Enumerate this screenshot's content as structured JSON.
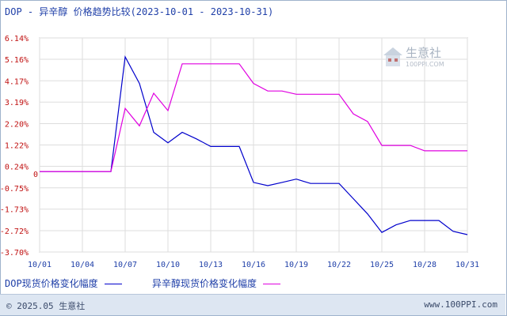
{
  "title": "DOP - 异辛醇 价格趋势比较(2023-10-01 - 2023-10-31)",
  "legend": [
    {
      "label": "DOP现货价格变化幅度",
      "color": "#0000cc"
    },
    {
      "label": "异辛醇现货价格变化幅度",
      "color": "#e000e0"
    }
  ],
  "footer": {
    "copyright": "© 2025.05 生意社",
    "site": "www.100PPI.com"
  },
  "watermark": {
    "name": "生意社",
    "url": "100PPI.COM"
  },
  "chart_data": {
    "type": "line",
    "x_ticks": [
      "10/01",
      "10/04",
      "10/07",
      "10/10",
      "10/13",
      "10/16",
      "10/19",
      "10/22",
      "10/25",
      "10/28",
      "10/31"
    ],
    "y_ticks": [
      "6.14%",
      "5.16%",
      "4.17%",
      "3.19%",
      "2.20%",
      "1.22%",
      "0.24%",
      "-0.75%",
      "-1.73%",
      "-2.72%",
      "-3.70%"
    ],
    "zero_label": "0",
    "ylim": [
      -3.7,
      6.14
    ],
    "xlim": [
      "10/01",
      "10/31"
    ],
    "grid": true,
    "series": [
      {
        "name": "DOP现货价格变化幅度",
        "color": "#0000cc",
        "x": [
          "10/01",
          "10/02",
          "10/03",
          "10/04",
          "10/05",
          "10/06",
          "10/07",
          "10/08",
          "10/09",
          "10/10",
          "10/11",
          "10/12",
          "10/13",
          "10/14",
          "10/15",
          "10/16",
          "10/17",
          "10/18",
          "10/19",
          "10/20",
          "10/21",
          "10/22",
          "10/23",
          "10/24",
          "10/25",
          "10/26",
          "10/27",
          "10/28",
          "10/29",
          "10/30",
          "10/31"
        ],
        "values": [
          0,
          0,
          0,
          0,
          0,
          0,
          5.27,
          4.05,
          1.8,
          1.32,
          1.8,
          1.5,
          1.15,
          1.15,
          1.15,
          -0.5,
          -0.65,
          -0.5,
          -0.35,
          -0.55,
          -0.55,
          -0.55,
          -1.25,
          -1.95,
          -2.8,
          -2.45,
          -2.25,
          -2.25,
          -2.25,
          -2.75,
          -2.9
        ]
      },
      {
        "name": "异辛醇现货价格变化幅度",
        "color": "#e000e0",
        "x": [
          "10/01",
          "10/02",
          "10/03",
          "10/04",
          "10/05",
          "10/06",
          "10/07",
          "10/08",
          "10/09",
          "10/10",
          "10/11",
          "10/12",
          "10/13",
          "10/14",
          "10/15",
          "10/16",
          "10/17",
          "10/18",
          "10/19",
          "10/20",
          "10/21",
          "10/22",
          "10/23",
          "10/24",
          "10/25",
          "10/26",
          "10/27",
          "10/28",
          "10/29",
          "10/30",
          "10/31"
        ],
        "values": [
          0,
          0,
          0,
          0,
          0,
          0,
          2.9,
          2.1,
          3.6,
          2.8,
          4.95,
          4.95,
          4.95,
          4.95,
          4.95,
          4.05,
          3.7,
          3.7,
          3.55,
          3.55,
          3.55,
          3.55,
          2.65,
          2.3,
          1.2,
          1.2,
          1.2,
          0.95,
          0.95,
          0.95,
          0.95
        ]
      }
    ]
  }
}
